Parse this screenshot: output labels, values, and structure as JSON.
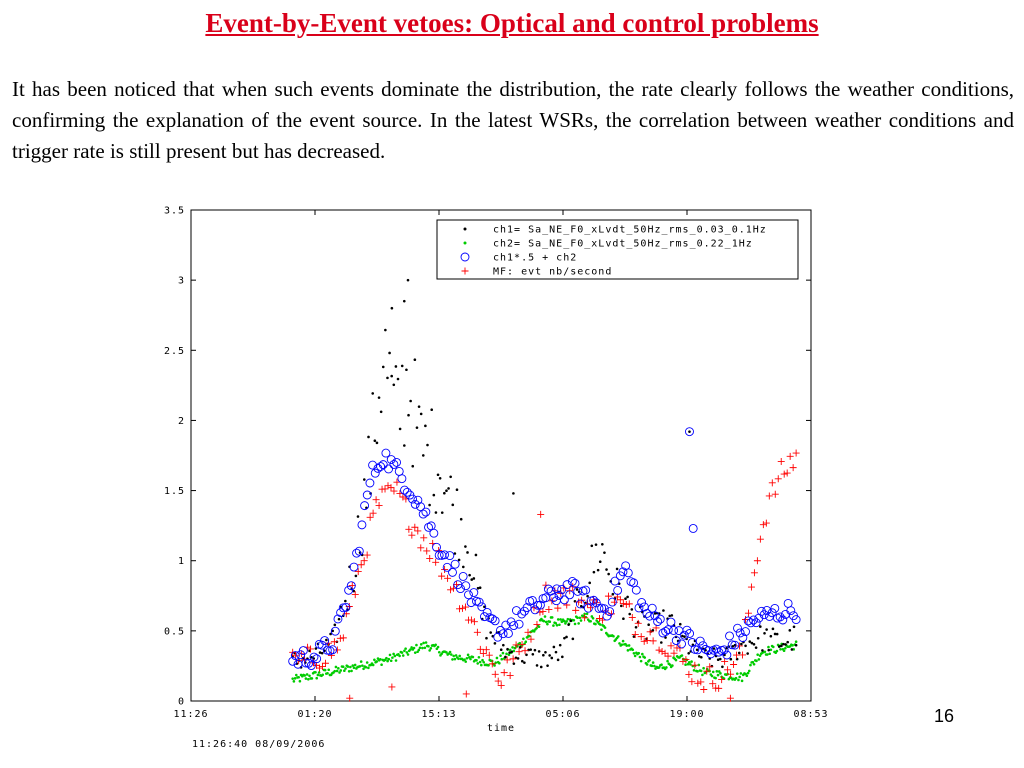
{
  "slide": {
    "title": "Event-by-Event vetoes: Optical and control problems",
    "body": "It has been noticed that when such events dominate the distribution, the rate clearly follows the weather conditions, confirming the explanation of the event source. In the latest WSRs, the correlation between weather conditions and trigger rate is still present but has decreased.",
    "page_number": "16"
  },
  "chart_data": {
    "type": "scatter",
    "xlabel": "time",
    "ylabel": "",
    "x_tick_labels": [
      "11:26",
      "01:20",
      "15:13",
      "05:06",
      "19:00",
      "08:53"
    ],
    "y_ticks": [
      0,
      0.5,
      1,
      1.5,
      2,
      2.5,
      3,
      3.5
    ],
    "y_tick_labels": [
      "0",
      "0.5",
      "1",
      "1.5",
      "2",
      "2.5",
      "3",
      "3.5"
    ],
    "xlim": [
      0,
      5
    ],
    "ylim": [
      0,
      3.5
    ],
    "grid": false,
    "legend_position": "top-right",
    "footer": "11:26:40 08/09/2006",
    "colors": {
      "ch1": "#000000",
      "ch2": "#00cc00",
      "combo": "#0000ff",
      "mf": "#ff0000"
    },
    "series": [
      {
        "name": "ch1= Sa_NE_F0_xLvdt_50Hz_rms_0.03_0.1Hz",
        "marker": "dot",
        "color": "#000000",
        "anchors": [
          [
            0.82,
            0.28
          ],
          [
            1.0,
            0.32
          ],
          [
            1.15,
            0.42
          ],
          [
            1.3,
            0.9
          ],
          [
            1.45,
            1.7
          ],
          [
            1.55,
            2.5
          ],
          [
            1.65,
            2.0
          ],
          [
            1.75,
            2.3
          ],
          [
            1.85,
            1.8
          ],
          [
            2.0,
            1.7
          ],
          [
            2.1,
            1.4
          ],
          [
            2.25,
            1.1
          ],
          [
            2.35,
            0.6
          ],
          [
            2.45,
            0.45
          ],
          [
            2.55,
            0.35
          ],
          [
            2.7,
            0.32
          ],
          [
            2.85,
            0.3
          ],
          [
            3.0,
            0.35
          ],
          [
            3.15,
            0.75
          ],
          [
            3.3,
            1.1
          ],
          [
            3.4,
            0.85
          ],
          [
            3.55,
            0.6
          ],
          [
            3.7,
            0.5
          ],
          [
            3.85,
            0.55
          ],
          [
            4.0,
            0.4
          ],
          [
            4.15,
            0.3
          ],
          [
            4.3,
            0.3
          ],
          [
            4.45,
            0.4
          ],
          [
            4.6,
            0.45
          ],
          [
            4.75,
            0.42
          ],
          [
            4.88,
            0.45
          ]
        ]
      },
      {
        "name": "ch2= Sa_NE_F0_xLvdt_50Hz_rms_0.22_1Hz",
        "marker": "dot",
        "color": "#00cc00",
        "anchors": [
          [
            0.82,
            0.15
          ],
          [
            1.2,
            0.22
          ],
          [
            1.6,
            0.3
          ],
          [
            1.9,
            0.4
          ],
          [
            2.1,
            0.32
          ],
          [
            2.45,
            0.27
          ],
          [
            2.65,
            0.4
          ],
          [
            2.85,
            0.58
          ],
          [
            3.0,
            0.55
          ],
          [
            3.2,
            0.6
          ],
          [
            3.5,
            0.4
          ],
          [
            3.75,
            0.23
          ],
          [
            3.95,
            0.3
          ],
          [
            4.15,
            0.2
          ],
          [
            4.45,
            0.17
          ],
          [
            4.6,
            0.35
          ],
          [
            4.88,
            0.4
          ]
        ]
      },
      {
        "name": "ch1*.5 + ch2",
        "marker": "circle",
        "color": "#0000ff",
        "anchors": [
          [
            0.82,
            0.3
          ],
          [
            1.0,
            0.32
          ],
          [
            1.15,
            0.42
          ],
          [
            1.3,
            0.85
          ],
          [
            1.45,
            1.6
          ],
          [
            1.55,
            1.75
          ],
          [
            1.7,
            1.6
          ],
          [
            1.85,
            1.4
          ],
          [
            2.0,
            1.1
          ],
          [
            2.15,
            0.9
          ],
          [
            2.35,
            0.6
          ],
          [
            2.5,
            0.5
          ],
          [
            2.65,
            0.6
          ],
          [
            2.85,
            0.72
          ],
          [
            3.05,
            0.8
          ],
          [
            3.2,
            0.72
          ],
          [
            3.35,
            0.65
          ],
          [
            3.5,
            0.95
          ],
          [
            3.65,
            0.65
          ],
          [
            3.8,
            0.55
          ],
          [
            3.95,
            0.48
          ],
          [
            4.1,
            0.38
          ],
          [
            4.25,
            0.33
          ],
          [
            4.4,
            0.45
          ],
          [
            4.55,
            0.58
          ],
          [
            4.7,
            0.62
          ],
          [
            4.88,
            0.65
          ]
        ]
      },
      {
        "name": "MF: evt nb/second",
        "marker": "plus",
        "color": "#ff0000",
        "anchors": [
          [
            0.82,
            0.27
          ],
          [
            1.0,
            0.3
          ],
          [
            1.2,
            0.4
          ],
          [
            1.35,
            0.9
          ],
          [
            1.5,
            1.4
          ],
          [
            1.65,
            1.5
          ],
          [
            1.8,
            1.25
          ],
          [
            2.0,
            1.0
          ],
          [
            2.2,
            0.7
          ],
          [
            2.35,
            0.4
          ],
          [
            2.5,
            0.15
          ],
          [
            2.65,
            0.35
          ],
          [
            2.85,
            0.75
          ],
          [
            3.05,
            0.75
          ],
          [
            3.25,
            0.65
          ],
          [
            3.45,
            0.7
          ],
          [
            3.6,
            0.55
          ],
          [
            3.8,
            0.45
          ],
          [
            4.0,
            0.25
          ],
          [
            4.15,
            0.15
          ],
          [
            4.3,
            0.2
          ],
          [
            4.45,
            0.35
          ],
          [
            4.55,
            1.0
          ],
          [
            4.65,
            1.4
          ],
          [
            4.75,
            1.6
          ],
          [
            4.88,
            1.75
          ]
        ]
      }
    ],
    "outliers": [
      {
        "series": 0,
        "points": [
          [
            1.75,
            3.0
          ],
          [
            1.72,
            2.85
          ],
          [
            1.62,
            2.8
          ],
          [
            4.02,
            1.92
          ],
          [
            2.6,
            1.48
          ]
        ]
      },
      {
        "series": 2,
        "points": [
          [
            4.02,
            1.92
          ],
          [
            4.05,
            1.23
          ],
          [
            2.95,
            0.8
          ]
        ]
      },
      {
        "series": 3,
        "points": [
          [
            2.82,
            1.33
          ],
          [
            1.28,
            0.02
          ],
          [
            1.62,
            0.1
          ],
          [
            2.22,
            0.05
          ],
          [
            4.35,
            0.02
          ]
        ]
      }
    ]
  }
}
